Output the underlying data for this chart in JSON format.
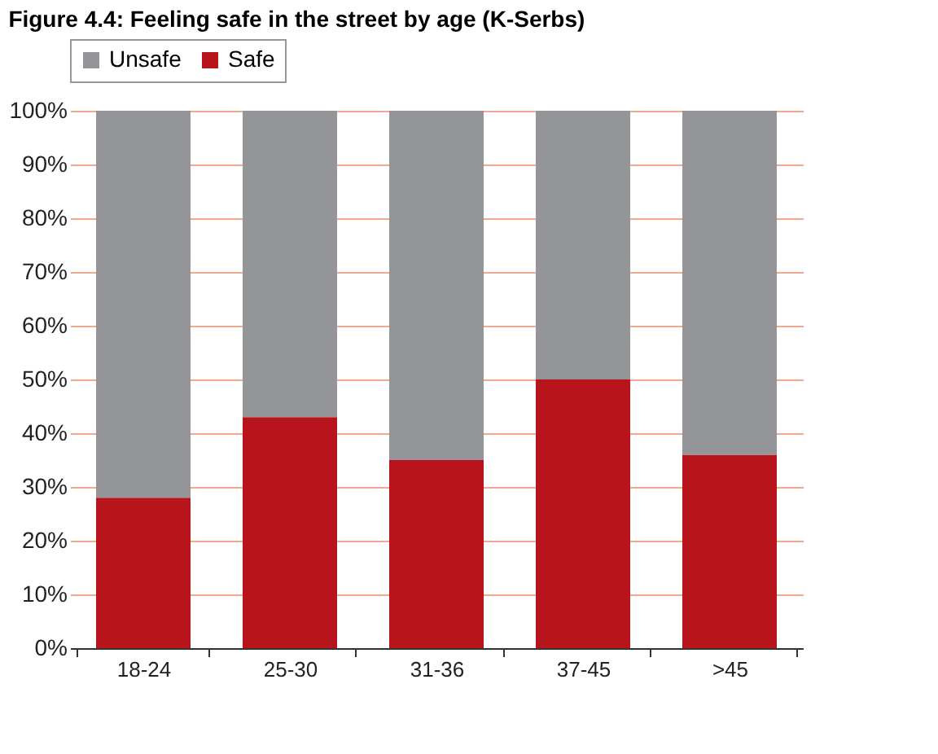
{
  "chart_data": {
    "type": "bar",
    "title": "Figure 4.4: Feeling safe in the street by age (K-Serbs)",
    "stacked": true,
    "categories": [
      "18-24",
      "25-30",
      "31-36",
      "37-45",
      ">45"
    ],
    "series": [
      {
        "name": "Safe",
        "color": "#b8141c",
        "values": [
          28,
          43,
          35,
          50,
          36
        ]
      },
      {
        "name": "Unsafe",
        "color": "#939598",
        "values": [
          72,
          57,
          65,
          50,
          64
        ]
      }
    ],
    "ylim": [
      0,
      100
    ],
    "yticks": [
      {
        "value": 0,
        "label": "0%"
      },
      {
        "value": 10,
        "label": "10%"
      },
      {
        "value": 20,
        "label": "20%"
      },
      {
        "value": 30,
        "label": "30%"
      },
      {
        "value": 40,
        "label": "40%"
      },
      {
        "value": 50,
        "label": "50%"
      },
      {
        "value": 60,
        "label": "60%"
      },
      {
        "value": 70,
        "label": "70%"
      },
      {
        "value": 80,
        "label": "80%"
      },
      {
        "value": 90,
        "label": "90%"
      },
      {
        "value": 100,
        "label": "100%"
      }
    ],
    "grid": "y",
    "legend": "top"
  }
}
